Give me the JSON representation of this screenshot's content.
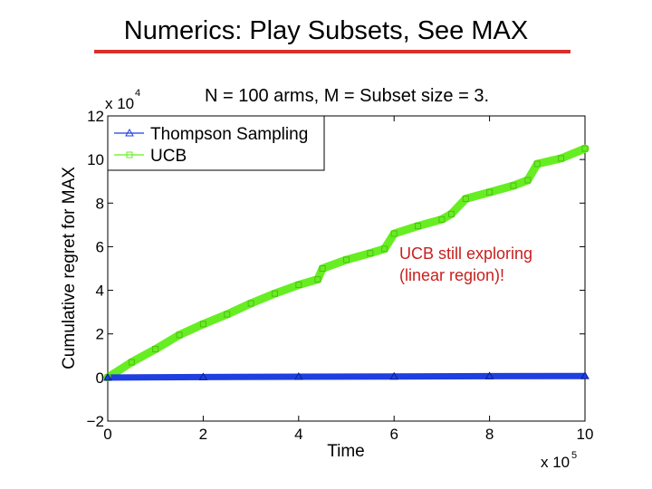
{
  "slide": {
    "title": "Numerics: Play Subsets, See MAX"
  },
  "chart_data": {
    "type": "line",
    "title": "N = 100 arms, M = Subset size = 3.",
    "xlabel": "Time",
    "ylabel": "Cumulative regret for MAX",
    "xlim": [
      0,
      1000000
    ],
    "ylim": [
      -20000,
      120000
    ],
    "x_ticks": [
      "0",
      "2",
      "4",
      "6",
      "8",
      "10"
    ],
    "y_ticks": [
      "−2",
      "0",
      "2",
      "4",
      "6",
      "8",
      "10",
      "12"
    ],
    "x_multiplier": "x 10",
    "x_multiplier_exp": "5",
    "y_multiplier": "x 10",
    "y_multiplier_exp": "4",
    "legend_position": "top-left",
    "grid": false,
    "series": [
      {
        "name": "Thompson Sampling",
        "color": "#1f3fe0",
        "marker": "triangle",
        "x": [
          0,
          200000,
          400000,
          600000,
          800000,
          1000000
        ],
        "y": [
          0,
          200,
          350,
          450,
          600,
          700
        ]
      },
      {
        "name": "UCB",
        "color": "#66ee22",
        "marker": "square",
        "x": [
          0,
          50000,
          100000,
          150000,
          200000,
          250000,
          300000,
          350000,
          400000,
          440000,
          450000,
          500000,
          550000,
          580000,
          600000,
          650000,
          700000,
          720000,
          750000,
          800000,
          850000,
          880000,
          900000,
          950000,
          1000000
        ],
        "y": [
          0,
          7000,
          13000,
          19500,
          24500,
          29000,
          34000,
          38500,
          42500,
          45000,
          50000,
          54000,
          57000,
          59000,
          66000,
          69500,
          72500,
          75000,
          82000,
          85000,
          88000,
          90500,
          98000,
          100500,
          105000
        ]
      }
    ],
    "annotation": "UCB still exploring\n(linear region)!"
  }
}
